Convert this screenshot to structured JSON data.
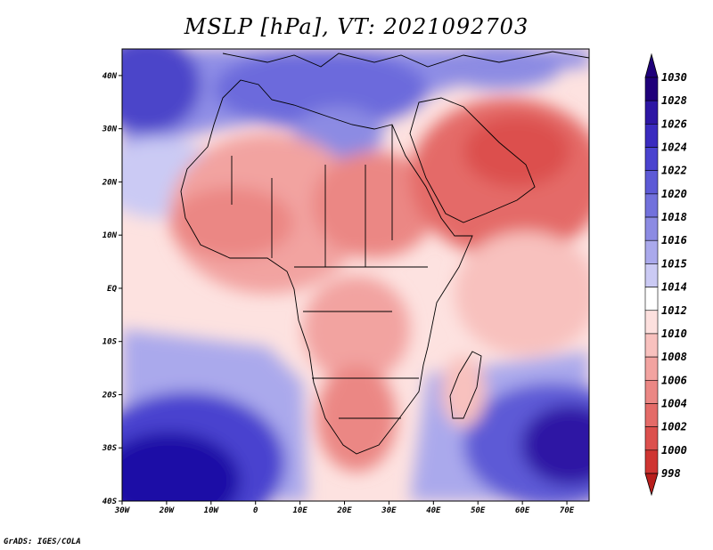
{
  "title": "MSLP [hPa], VT: 2021092703",
  "credit": "GrADS: IGES/COLA",
  "map": {
    "lat_ticks": [
      {
        "value": 40,
        "label": "40N"
      },
      {
        "value": 30,
        "label": "30N"
      },
      {
        "value": 20,
        "label": "20N"
      },
      {
        "value": 10,
        "label": "10N"
      },
      {
        "value": 0,
        "label": "EQ"
      },
      {
        "value": -10,
        "label": "10S"
      },
      {
        "value": -20,
        "label": "20S"
      },
      {
        "value": -30,
        "label": "30S"
      },
      {
        "value": -40,
        "label": "40S"
      }
    ],
    "lon_ticks": [
      {
        "value": -30,
        "label": "30W"
      },
      {
        "value": -20,
        "label": "20W"
      },
      {
        "value": -10,
        "label": "10W"
      },
      {
        "value": 0,
        "label": "0"
      },
      {
        "value": 10,
        "label": "10E"
      },
      {
        "value": 20,
        "label": "20E"
      },
      {
        "value": 30,
        "label": "30E"
      },
      {
        "value": 40,
        "label": "40E"
      },
      {
        "value": 50,
        "label": "50E"
      },
      {
        "value": 60,
        "label": "60E"
      },
      {
        "value": 70,
        "label": "70E"
      }
    ],
    "colors": {
      "ocean_mid": "#fde2e0",
      "high_strong": "#1f0fa6",
      "high_mid": "#6c6adc",
      "high_light": "#b3b2ef",
      "low_light": "#f6b4b0",
      "low_mid": "#e88d88",
      "low_strong": "#d96763",
      "border": "#000000"
    }
  },
  "colorbar": {
    "levels": [
      {
        "label": "1030",
        "color": "#1f007a"
      },
      {
        "label": "1028",
        "color": "#2d16a4"
      },
      {
        "label": "1026",
        "color": "#3a2bbf"
      },
      {
        "label": "1024",
        "color": "#4a43cf"
      },
      {
        "label": "1022",
        "color": "#5d5ad6"
      },
      {
        "label": "1020",
        "color": "#7271dc"
      },
      {
        "label": "1018",
        "color": "#8c8be3"
      },
      {
        "label": "1016",
        "color": "#aaa9ec"
      },
      {
        "label": "1015",
        "color": "#cbcaf4"
      },
      {
        "label": "1014",
        "color": "#ffffff"
      },
      {
        "label": "1012",
        "color": "#fde0de"
      },
      {
        "label": "1010",
        "color": "#f8c1be"
      },
      {
        "label": "1008",
        "color": "#f2a3a0"
      },
      {
        "label": "1006",
        "color": "#eb8784"
      },
      {
        "label": "1004",
        "color": "#e46b68"
      },
      {
        "label": "1002",
        "color": "#dc504d"
      },
      {
        "label": "1000",
        "color": "#cf3532"
      },
      {
        "label": "998",
        "color": "#b81e1c"
      }
    ],
    "top_arrow_color": "#1f007a",
    "bottom_arrow_color": "#b81e1c"
  }
}
